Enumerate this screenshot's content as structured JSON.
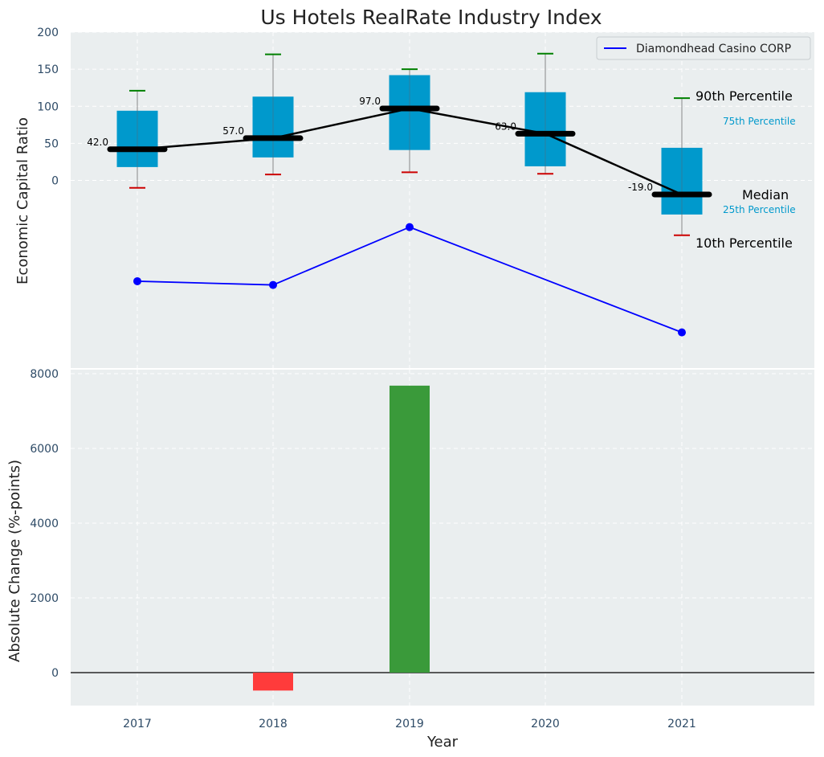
{
  "chart_data": [
    {
      "type": "box",
      "title": "Us Hotels RealRate Industry Index",
      "ylabel": "Economic Capital Ratio",
      "categories": [
        "2017",
        "2018",
        "2019",
        "2020",
        "2021"
      ],
      "ylim": [
        -255,
        200
      ],
      "yticks": [
        0,
        50,
        100,
        150,
        200
      ],
      "grid": true,
      "boxes": [
        {
          "p10": -10,
          "p25": 18,
          "median": 42,
          "p75": 94,
          "p90": 121
        },
        {
          "p10": 8,
          "p25": 31,
          "median": 57,
          "p75": 113,
          "p90": 170
        },
        {
          "p10": 11,
          "p25": 41,
          "median": 97,
          "p75": 142,
          "p90": 150
        },
        {
          "p10": 9,
          "p25": 19,
          "median": 63,
          "p75": 119,
          "p90": 171
        },
        {
          "p10": -74,
          "p25": -46,
          "median": -19,
          "p75": 44,
          "p90": 111
        }
      ],
      "median_labels": [
        "42.0",
        "57.0",
        "97.0",
        "63.0",
        "-19.0"
      ],
      "series": [
        {
          "name": "Diamondhead Casino CORP",
          "values": [
            -136,
            -141,
            -63,
            null,
            -205
          ],
          "color": "#0000ff"
        }
      ],
      "legend": {
        "position": "top-right",
        "entries": [
          "Diamondhead Casino CORP"
        ]
      },
      "annotations": {
        "p90": "90th Percentile",
        "p75": "75th Percentile",
        "median": "Median",
        "p25": "25th Percentile",
        "p10": "10th Percentile"
      },
      "colors": {
        "box": "#0099cc",
        "median_line": "#000000",
        "upper_cap": "#008000",
        "lower_cap": "#cc0000",
        "panel_bg": "#eaeeef"
      }
    },
    {
      "type": "bar",
      "xlabel": "Year",
      "ylabel": "Absolute Change (%-points)",
      "categories": [
        "2017",
        "2018",
        "2019",
        "2020",
        "2021"
      ],
      "values": [
        null,
        -480,
        7680,
        null,
        null
      ],
      "ylim": [
        -900,
        8000
      ],
      "yticks": [
        0,
        2000,
        4000,
        6000,
        8000
      ],
      "grid": true,
      "colors": {
        "positive": "#3a9a3a",
        "negative": "#ff3b3b"
      }
    }
  ]
}
